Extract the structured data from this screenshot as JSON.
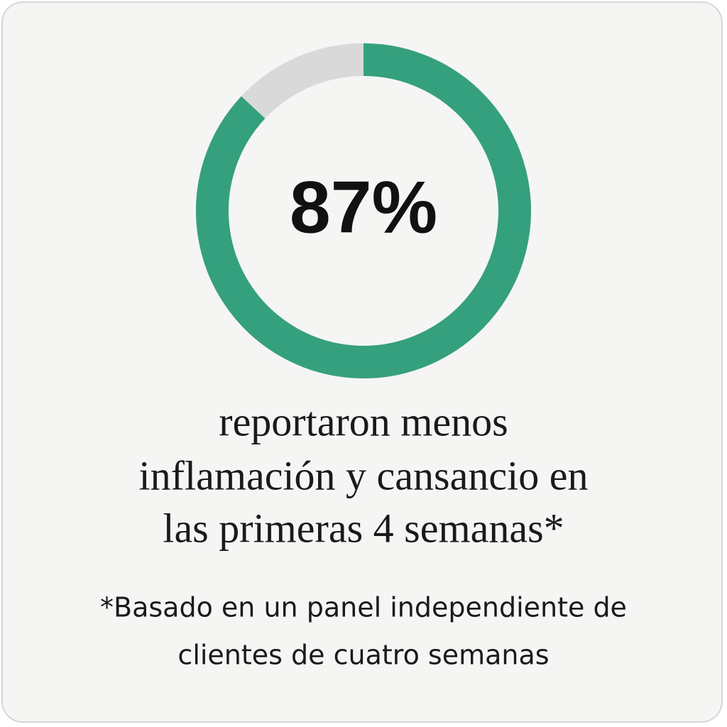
{
  "chart_data": {
    "type": "donut",
    "values": [
      87,
      13
    ],
    "value_labels": [
      "87%",
      null
    ],
    "colors": [
      "#35a07d",
      "#d9d9d9"
    ],
    "caption": [
      "reportaron menos",
      "inflamación y cansancio en",
      "las primeras 4 semanas*"
    ],
    "footnote": [
      "*Basado en un panel independiente de",
      "clientes de cuatro semanas"
    ]
  }
}
